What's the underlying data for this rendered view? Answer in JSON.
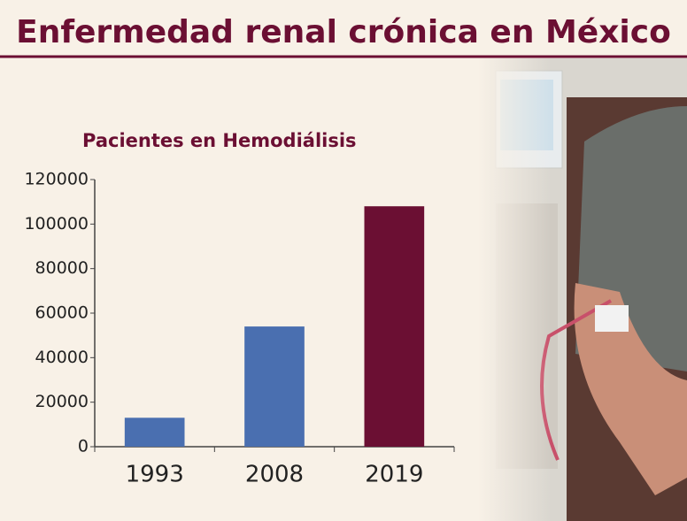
{
  "chart_data": {
    "type": "bar",
    "page_title": "Enfermedad renal crónica en México",
    "title": "Pacientes en Hemodiálisis",
    "categories": [
      "1993",
      "2008",
      "2019"
    ],
    "values": [
      13000,
      54000,
      108000
    ],
    "colors": [
      "#4a6fb0",
      "#4a6fb0",
      "#6b0f33"
    ],
    "ylim": [
      0,
      120000
    ],
    "yticks": [
      0,
      20000,
      40000,
      60000,
      80000,
      100000,
      120000
    ],
    "grid": false
  }
}
